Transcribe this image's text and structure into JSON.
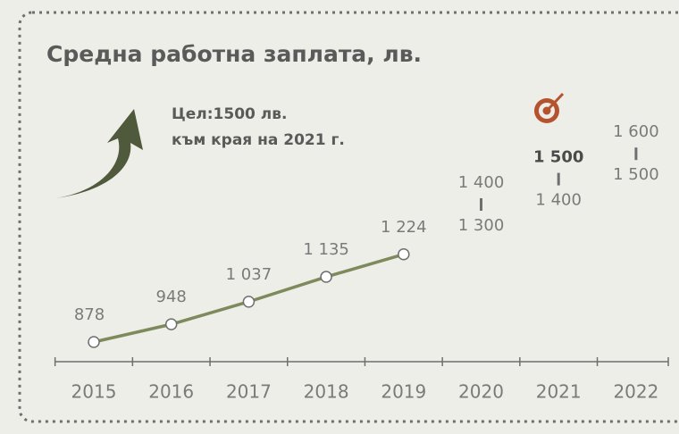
{
  "chart_data": {
    "type": "line",
    "title": "Средна работна заплата, лв.",
    "annotation": [
      "Цел:1500 лв.",
      "към края на 2021 г."
    ],
    "categories": [
      "2015",
      "2016",
      "2017",
      "2018",
      "2019",
      "2020",
      "2021",
      "2022"
    ],
    "series": [
      {
        "color": "#7d8a5c",
        "values": [
          878,
          948,
          1037,
          1135,
          1224,
          null,
          null,
          null
        ],
        "value_labels": [
          "878",
          "948",
          "1 037",
          "1 135",
          "1 224",
          null,
          null,
          null
        ]
      }
    ],
    "range_low": [
      null,
      null,
      null,
      null,
      null,
      1300,
      1400,
      1500
    ],
    "range_low_labels": [
      null,
      null,
      null,
      null,
      null,
      "1 300",
      "1 400",
      "1 500"
    ],
    "range_high": [
      null,
      null,
      null,
      null,
      null,
      1400,
      1500,
      1600
    ],
    "range_high_labels": [
      null,
      null,
      null,
      null,
      null,
      "1 400",
      "1 500",
      "1 600"
    ]
  }
}
